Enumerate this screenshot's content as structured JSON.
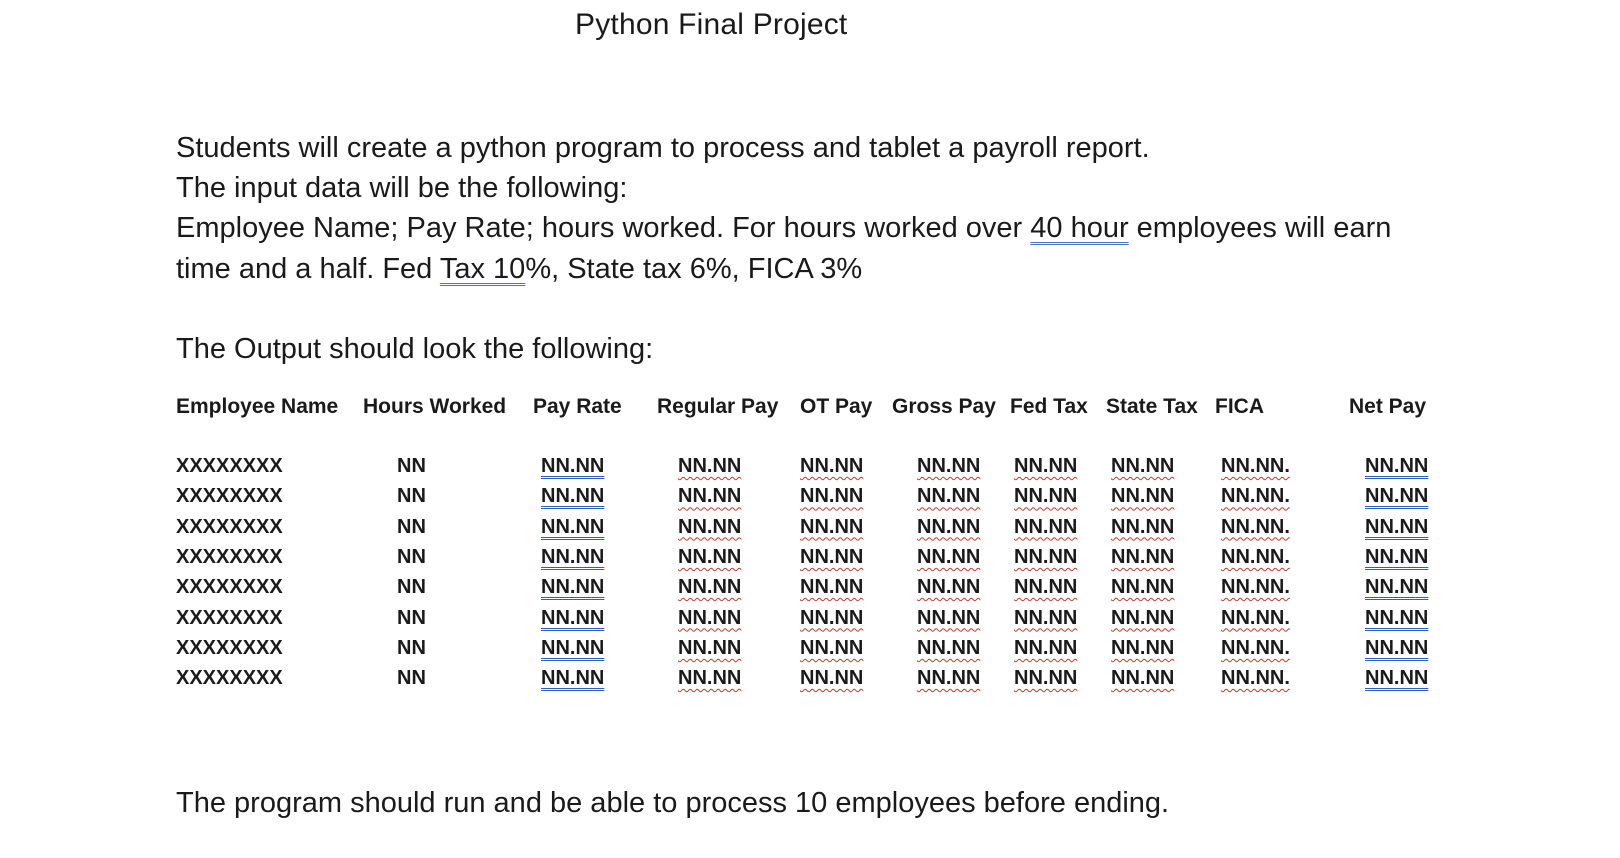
{
  "title": "Python Final Project",
  "paragraphs": {
    "line1": "Students will create a python program to process and tablet a payroll report.",
    "line2": "The input data will be the following:",
    "line3_a": "Employee Name; Pay Rate; hours worked. For hours worked over ",
    "line3_link": "40 hour",
    "line3_b": " employees will earn",
    "line4_a": "time and a half. Fed ",
    "line4_link": "Tax  10",
    "line4_b": "%, State tax 6%, FICA 3%",
    "line5": "The Output should look the following:"
  },
  "table": {
    "headers": [
      "Employee Name",
      "Hours Worked",
      "Pay Rate",
      "Regular Pay",
      "OT Pay",
      "Gross Pay",
      "Fed Tax",
      "State Tax",
      "FICA",
      "Net Pay"
    ],
    "rows": [
      [
        "XXXXXXXX",
        "NN",
        "NN.NN",
        "NN.NN",
        "NN.NN",
        "NN.NN",
        "NN.NN",
        "NN.NN",
        "NN.NN.",
        "NN.NN"
      ],
      [
        "XXXXXXXX",
        "NN",
        "NN.NN",
        "NN.NN",
        "NN.NN",
        "NN.NN",
        "NN.NN",
        "NN.NN",
        "NN.NN.",
        "NN.NN"
      ],
      [
        "XXXXXXXX",
        "NN",
        "NN.NN",
        "NN.NN",
        "NN.NN",
        "NN.NN",
        "NN.NN",
        "NN.NN",
        "NN.NN.",
        "NN.NN"
      ],
      [
        "XXXXXXXX",
        "NN",
        "NN.NN",
        "NN.NN",
        "NN.NN",
        "NN.NN",
        "NN.NN",
        "NN.NN",
        "NN.NN.",
        "NN.NN"
      ],
      [
        "XXXXXXXX",
        "NN",
        "NN.NN",
        "NN.NN",
        "NN.NN",
        "NN.NN",
        "NN.NN",
        "NN.NN",
        "NN.NN.",
        "NN.NN"
      ],
      [
        "XXXXXXXX",
        "NN",
        "NN.NN",
        "NN.NN",
        "NN.NN",
        "NN.NN",
        "NN.NN",
        "NN.NN",
        "NN.NN.",
        "NN.NN"
      ],
      [
        "XXXXXXXX",
        "NN",
        "NN.NN",
        "NN.NN",
        "NN.NN",
        "NN.NN",
        "NN.NN",
        "NN.NN",
        "NN.NN.",
        "NN.NN"
      ],
      [
        "XXXXXXXX",
        "NN",
        "NN.NN",
        "NN.NN",
        "NN.NN",
        "NN.NN",
        "NN.NN",
        "NN.NN",
        "NN.NN.",
        "NN.NN"
      ]
    ]
  },
  "closing": "The program should run and be able to process 10 employees before ending."
}
